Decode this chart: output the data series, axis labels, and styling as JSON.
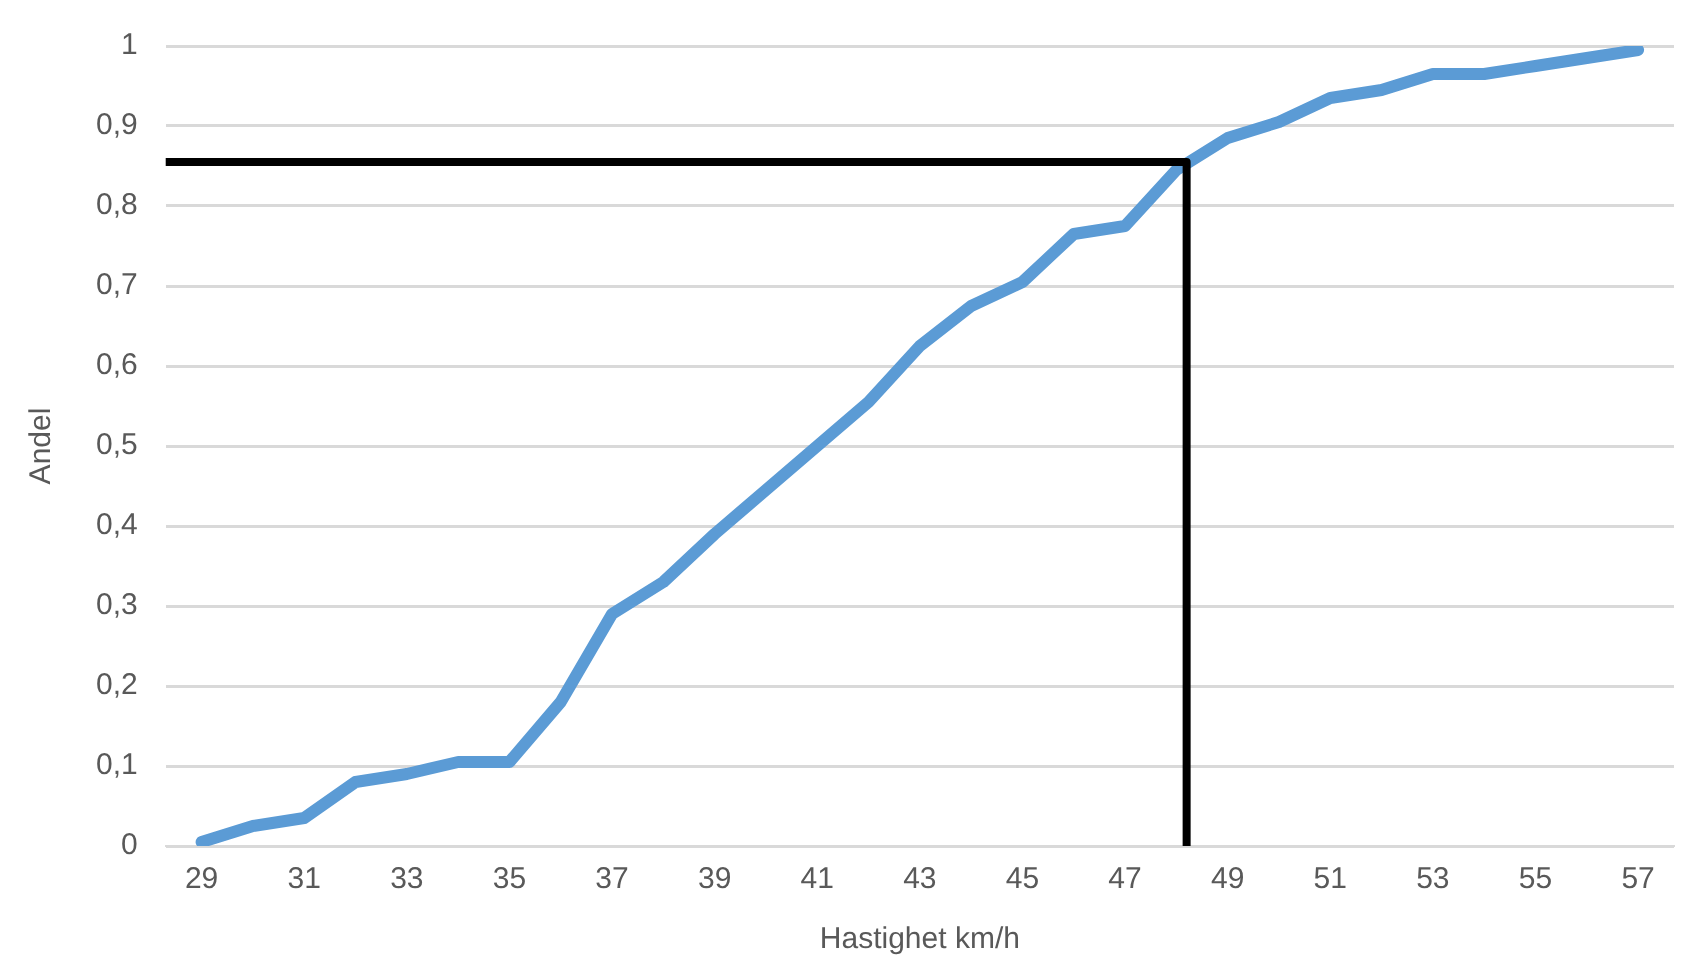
{
  "chart_data": {
    "type": "line",
    "xlabel": "Hastighet km/h",
    "ylabel": "Andel",
    "xlim": [
      28.3,
      57.7
    ],
    "xticks": [
      29,
      31,
      33,
      35,
      37,
      39,
      41,
      43,
      45,
      47,
      49,
      51,
      53,
      55,
      57
    ],
    "ylim": [
      0,
      1
    ],
    "yticks": [
      0,
      {
        "value": 0.1,
        "label": "0,1"
      },
      {
        "value": 0.2,
        "label": "0,2"
      },
      {
        "value": 0.3,
        "label": "0,3"
      },
      {
        "value": 0.4,
        "label": "0,4"
      },
      {
        "value": 0.5,
        "label": "0,5"
      },
      {
        "value": 0.6,
        "label": "0,6"
      },
      {
        "value": 0.7,
        "label": "0,7"
      },
      {
        "value": 0.8,
        "label": "0,8"
      },
      {
        "value": 0.9,
        "label": "0,9"
      },
      1
    ],
    "grid": "y",
    "legend": false,
    "marker": "none",
    "line_style": "solid",
    "series": [
      {
        "color": "#5b9bd5",
        "x": [
          29,
          30,
          31,
          32,
          33,
          34,
          35,
          36,
          37,
          38,
          39,
          40,
          41,
          42,
          43,
          44,
          45,
          46,
          47,
          48,
          49,
          50,
          51,
          52,
          53,
          54,
          55,
          56,
          57
        ],
        "values": [
          0.005,
          0.025,
          0.035,
          0.08,
          0.09,
          0.105,
          0.105,
          0.18,
          0.29,
          0.33,
          0.39,
          0.445,
          0.5,
          0.555,
          0.625,
          0.675,
          0.705,
          0.765,
          0.775,
          0.845,
          0.885,
          0.905,
          0.935,
          0.945,
          0.965,
          0.965,
          0.975,
          0.985,
          0.995
        ]
      },
      {
        "color": "#000000",
        "x": [
          28.3,
          48.2,
          48.2
        ],
        "values": [
          0.855,
          0.855,
          0
        ]
      }
    ]
  }
}
